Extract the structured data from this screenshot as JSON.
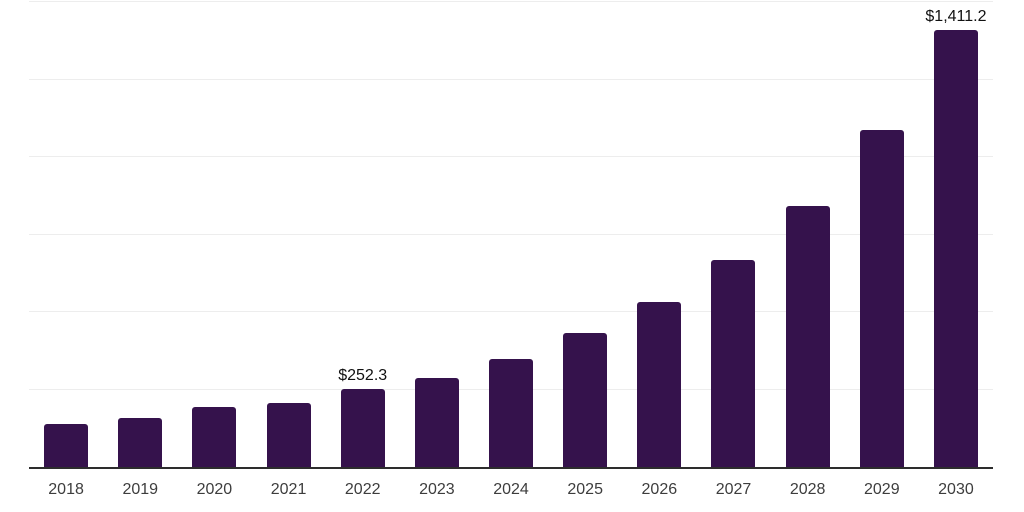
{
  "chart_data": {
    "type": "bar",
    "title": "",
    "xlabel": "",
    "ylabel": "",
    "categories": [
      "2018",
      "2019",
      "2020",
      "2021",
      "2022",
      "2023",
      "2024",
      "2025",
      "2026",
      "2027",
      "2028",
      "2029",
      "2030"
    ],
    "values": [
      140,
      159,
      193,
      206,
      252.3,
      288,
      349,
      431,
      531,
      668,
      843,
      1086,
      1411.2
    ],
    "bar_labels": [
      "",
      "",
      "",
      "",
      "$252.3",
      "",
      "",
      "",
      "",
      "",
      "",
      "",
      "$1,411.2"
    ],
    "ylim": [
      0,
      1500
    ],
    "gridline_step": 250,
    "grid": true,
    "legend": false,
    "y_axis_labels_visible": false,
    "colors": {
      "bar": "#35124c",
      "gridline": "#ededed",
      "axis_line": "#2d2d2d",
      "x_tick_label": "#3d3d3d",
      "data_label": "#111111",
      "background": "#ffffff"
    }
  }
}
